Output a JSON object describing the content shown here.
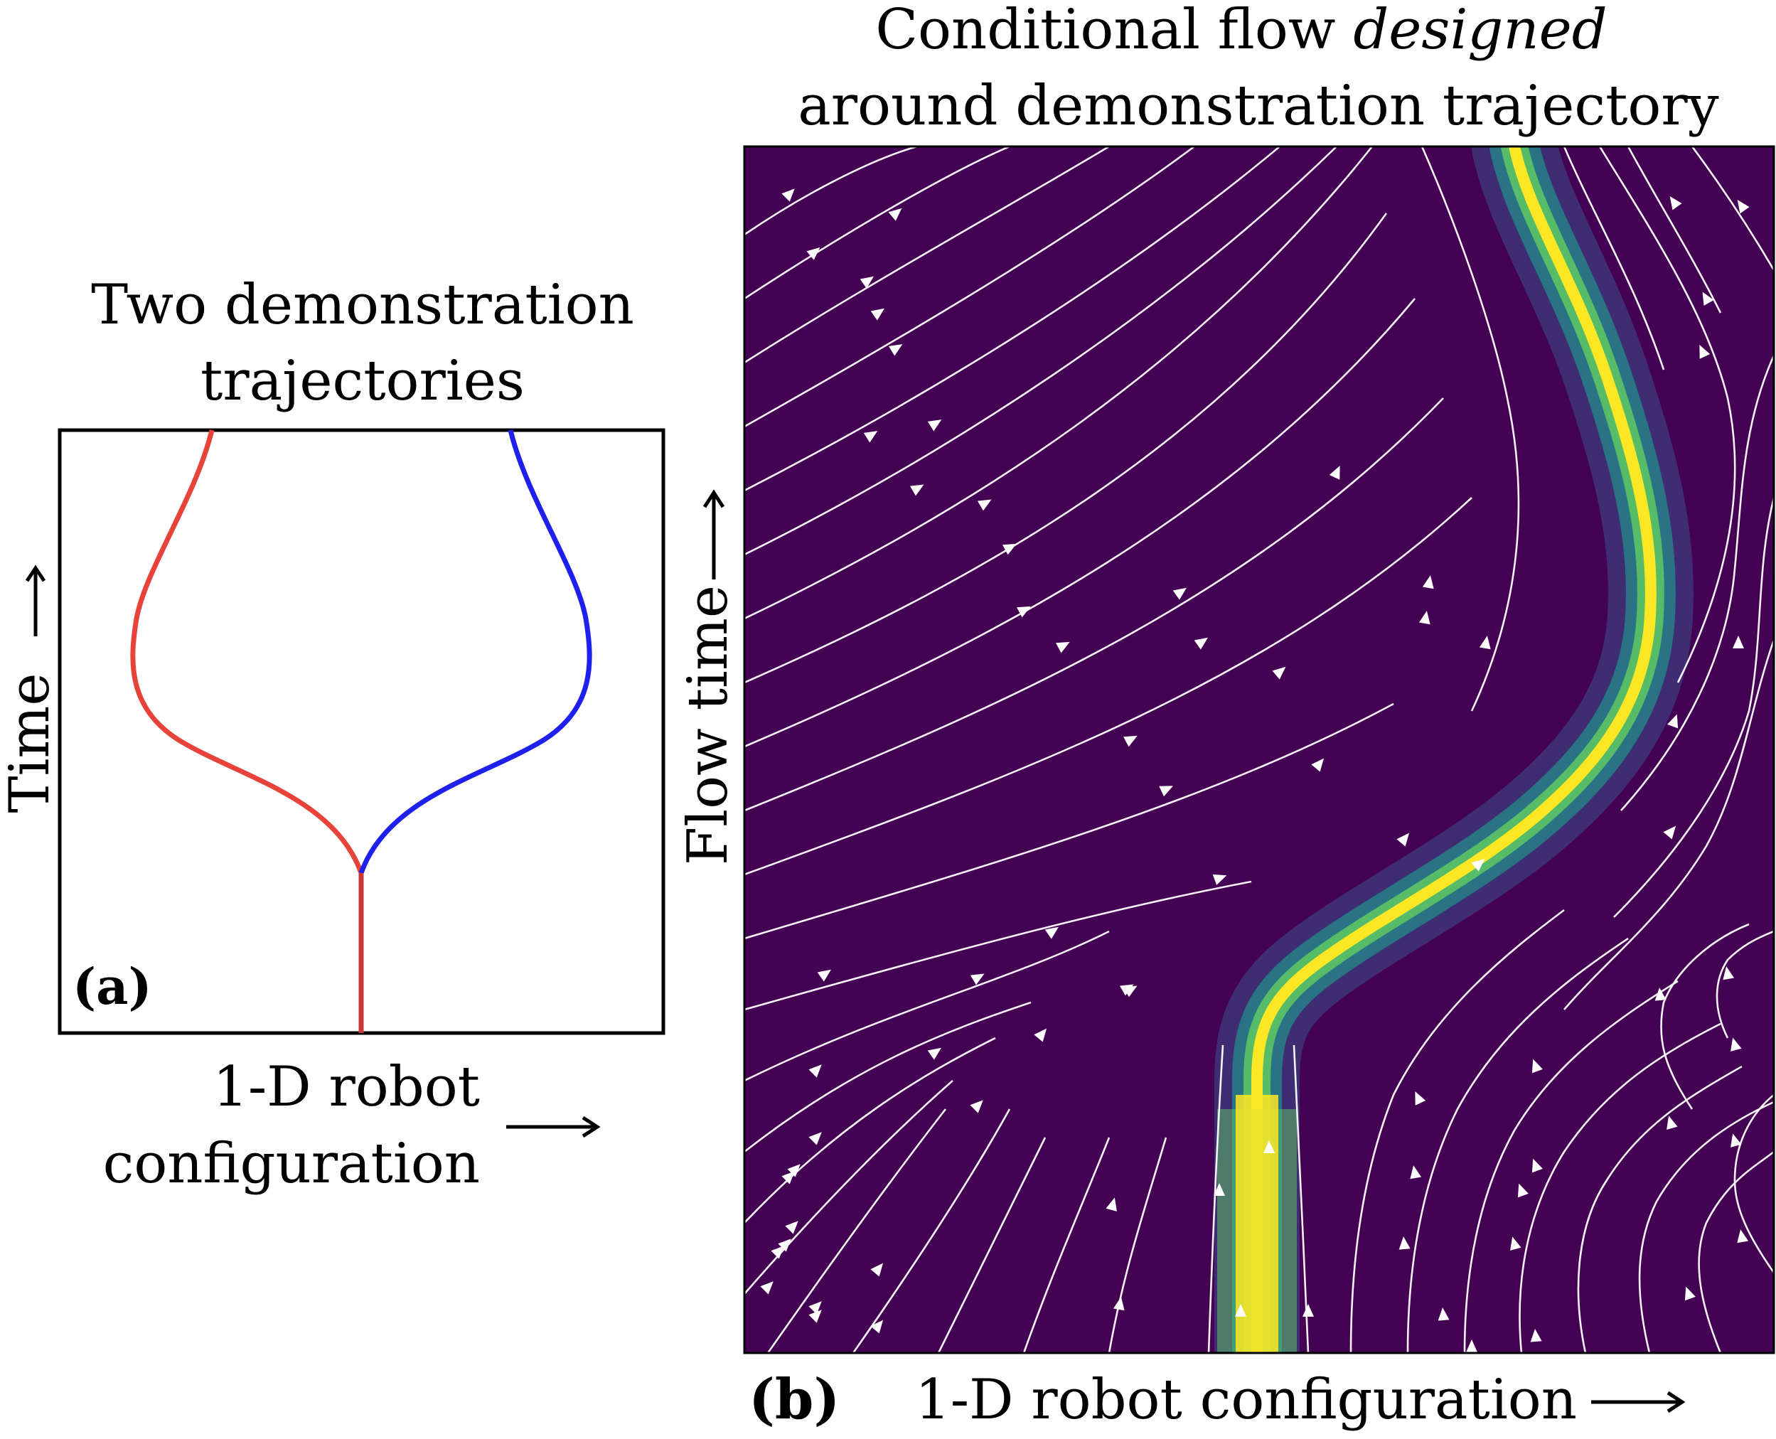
{
  "panel_a": {
    "title_line1": "Two demonstration",
    "title_line2": "trajectories",
    "y_label": "Time",
    "x_label_line1": "1-D robot",
    "x_label_line2": "configuration",
    "tag": "(a)",
    "colors": {
      "left_trajectory": "#e8433a",
      "right_trajectory": "#2020ee",
      "trunk": "#c8383a"
    }
  },
  "panel_b": {
    "title_line1_prefix": "Conditional flow ",
    "title_line1_emph": "designed",
    "title_line2": "around demonstration trajectory",
    "y_label": "Flow time",
    "x_label": "1-D robot configuration",
    "tag": "(b)",
    "colors": {
      "background": "#440154",
      "streamline": "#ffffff",
      "highlight_core": "#fde725",
      "highlight_edge": "#21918c"
    }
  },
  "icons": {
    "arrow": "right-arrow-icon",
    "streamline_arrow": "triangle-arrowhead-icon"
  }
}
